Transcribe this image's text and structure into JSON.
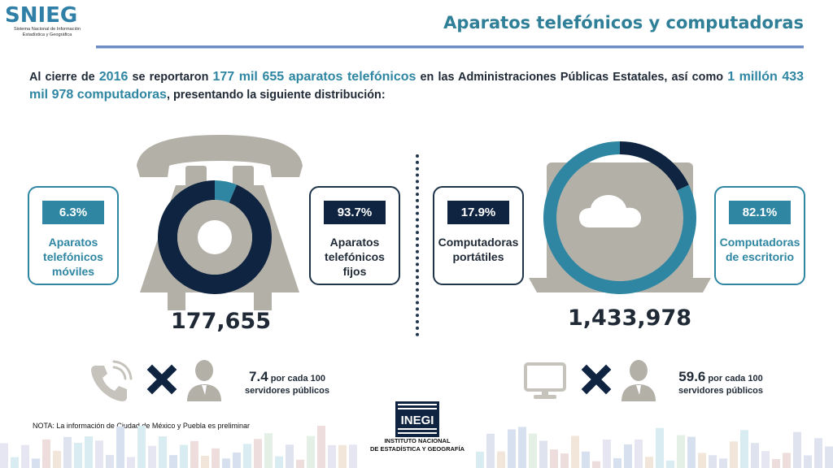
{
  "header": {
    "logo_text": "SNIEG",
    "logo_sub_line1": "Sistema Nacional de Información",
    "logo_sub_line2": "Estadística y Geográfica",
    "title": "Aparatos telefónicos y computadoras"
  },
  "intro": {
    "t1": "Al cierre de ",
    "year": "2016",
    "t2": " se reportaron ",
    "phones": "177 mil 655 aparatos telefónicos",
    "t3": " en las Administraciones Públicas Estatales, así como ",
    "computers": "1 millón 433 mil 978 computadoras",
    "t4": ", presentando la siguiente distribución:"
  },
  "phones": {
    "total": "177,655",
    "mobile_pct": "6.3%",
    "mobile_label_1": "Aparatos",
    "mobile_label_2": "telefónicos",
    "mobile_label_3": "móviles",
    "fixed_pct": "93.7%",
    "fixed_label_1": "Aparatos",
    "fixed_label_2": "telefónicos",
    "fixed_label_3": "fijos",
    "ratio_value": "7.4",
    "ratio_unit": " por cada 100",
    "ratio_line2": "servidores públicos"
  },
  "computers": {
    "total": "1,433,978",
    "portable_pct": "17.9%",
    "portable_label_1": "Computadoras",
    "portable_label_2": "portátiles",
    "desktop_pct": "82.1%",
    "desktop_label_1": "Computadoras",
    "desktop_label_2": "de escritorio",
    "ratio_value": "59.6",
    "ratio_unit": " por cada 100",
    "ratio_line2": "servidores públicos"
  },
  "footer": {
    "note": "NOTA: La información de Ciudad de México y Puebla es preliminar",
    "inegi_logo": "INEGI",
    "inegi_line1": "INSTITUTO NACIONAL",
    "inegi_line2": "DE ESTADÍSTICA Y GEOGRAFÍA"
  },
  "colors": {
    "navy": "#0f2440",
    "teal": "#2e86a3",
    "gray": "#b3b0a8"
  },
  "icons": [
    "phone-handset-icon",
    "multiply-icon",
    "user-icon",
    "monitor-icon",
    "cloud-icon",
    "laptop-icon",
    "rotary-phone-icon"
  ],
  "chart_data": [
    {
      "type": "pie",
      "total": 177655,
      "categories": [
        "Aparatos telefónicos móviles",
        "Aparatos telefónicos fijos"
      ],
      "values": [
        6.3,
        93.7
      ],
      "colors": [
        "#2e86a3",
        "#0f2440"
      ]
    },
    {
      "type": "pie",
      "total": 1433978,
      "categories": [
        "Computadoras portátiles",
        "Computadoras de escritorio"
      ],
      "values": [
        17.9,
        82.1
      ],
      "colors": [
        "#0f2440",
        "#2e86a3"
      ]
    }
  ]
}
